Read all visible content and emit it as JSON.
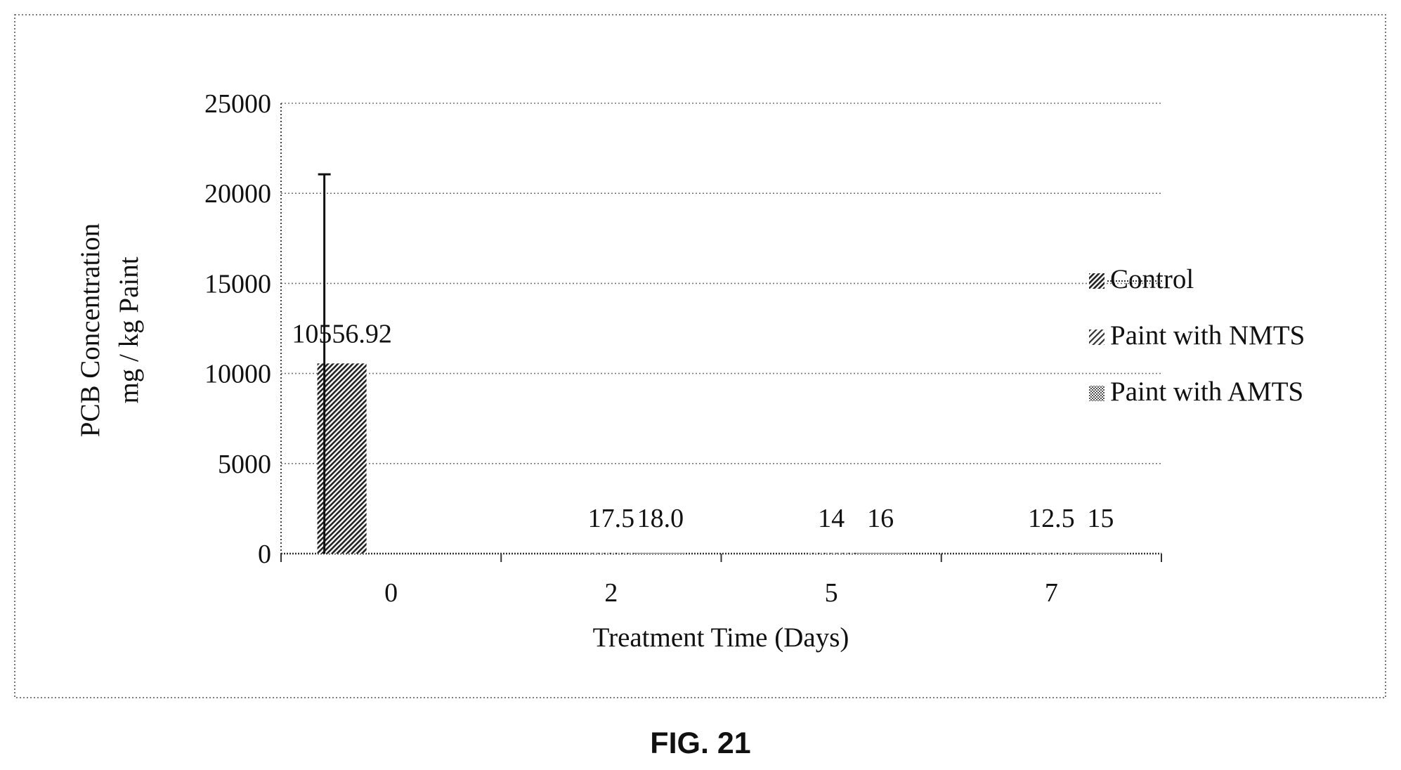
{
  "figure_caption": "FIG. 21",
  "chart_data": {
    "type": "bar",
    "xlabel": "Treatment Time (Days)",
    "ylabel_lines": [
      "PCB Concentration",
      "mg / kg Paint"
    ],
    "categories": [
      "0",
      "2",
      "5",
      "7"
    ],
    "ylim": [
      0,
      25000
    ],
    "yticks": [
      0,
      5000,
      10000,
      15000,
      20000,
      25000
    ],
    "grid": true,
    "legend_position": "right",
    "series": [
      {
        "name": "Control",
        "values": [
          10556.92,
          null,
          null,
          null
        ],
        "data_labels": [
          "10556.92",
          "",
          "",
          ""
        ],
        "error_plus": [
          10500,
          null,
          null,
          null
        ],
        "pattern": "dense-diagonal"
      },
      {
        "name": "Paint with NMTS",
        "values": [
          null,
          17.5,
          14,
          12.5
        ],
        "data_labels": [
          "",
          "17.5",
          "14",
          "12.5"
        ],
        "pattern": "diagonal"
      },
      {
        "name": "Paint with AMTS",
        "values": [
          null,
          18.0,
          16,
          15
        ],
        "data_labels": [
          "",
          "18.0",
          "16",
          "15"
        ],
        "pattern": "checker"
      }
    ]
  }
}
